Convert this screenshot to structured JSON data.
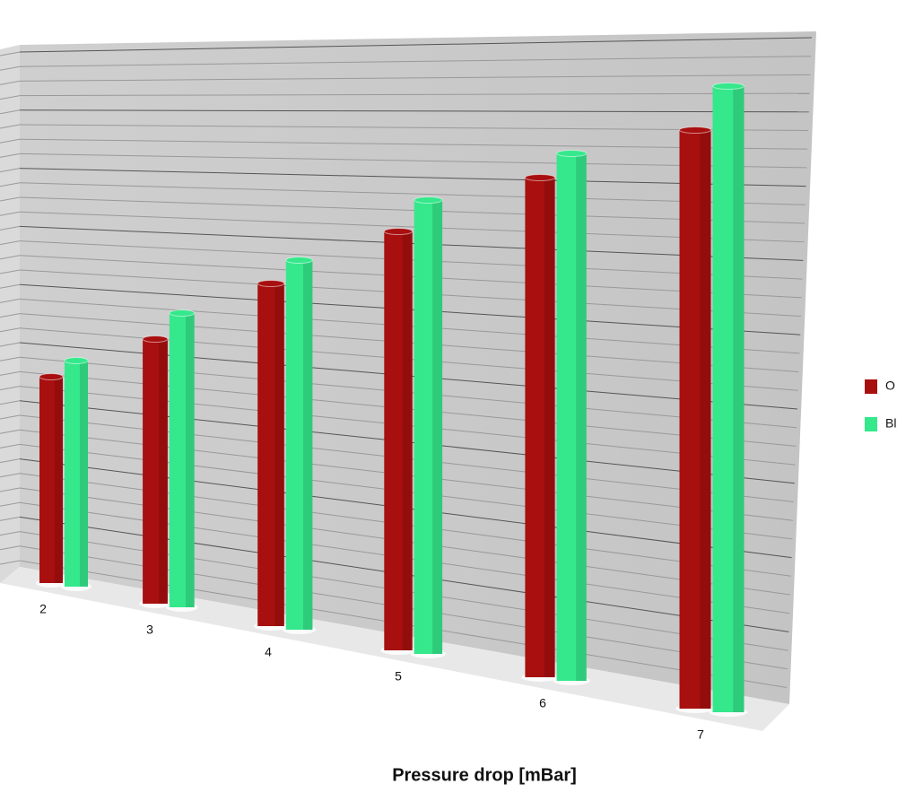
{
  "chart_data": {
    "type": "bar3d",
    "x_label": "Pressure drop [mBar]",
    "categories": [
      "2",
      "3",
      "4",
      "5",
      "6",
      "7"
    ],
    "series": [
      {
        "name": "O",
        "color": "#a80f0f",
        "values": [
          23,
          29.5,
          38.2,
          46.7,
          55.7,
          64.5
        ]
      },
      {
        "name": "Bl",
        "color": "#35e88c",
        "values": [
          25.2,
          32.8,
          41.2,
          50.6,
          58.8,
          69.8
        ]
      }
    ],
    "ylim": [
      0,
      70
    ]
  }
}
